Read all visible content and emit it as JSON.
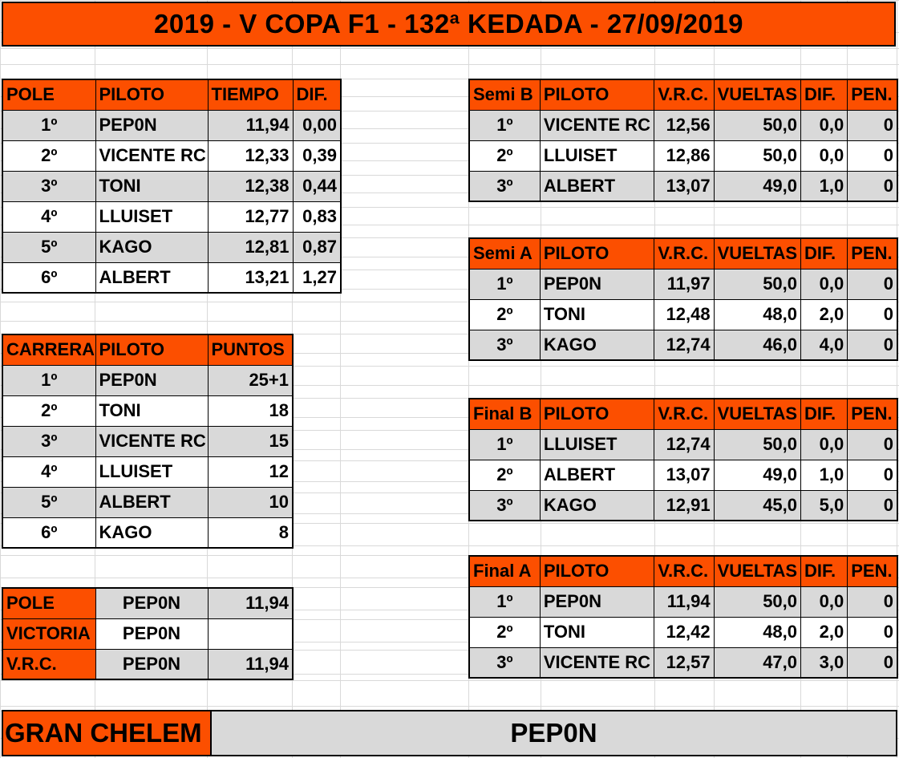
{
  "title": "2019 - V COPA F1 - 132ª KEDADA - 27/09/2019",
  "pole_table": {
    "headers": [
      "POLE",
      "PILOTO",
      "TIEMPO",
      "DIF."
    ],
    "rows": [
      [
        "1º",
        "PEP0N",
        "11,94",
        "0,00"
      ],
      [
        "2º",
        "VICENTE RC",
        "12,33",
        "0,39"
      ],
      [
        "3º",
        "TONI",
        "12,38",
        "0,44"
      ],
      [
        "4º",
        "LLUISET",
        "12,77",
        "0,83"
      ],
      [
        "5º",
        "KAGO",
        "12,81",
        "0,87"
      ],
      [
        "6º",
        "ALBERT",
        "13,21",
        "1,27"
      ]
    ]
  },
  "carrera_table": {
    "headers": [
      "CARRERA",
      "PILOTO",
      "PUNTOS"
    ],
    "rows": [
      [
        "1º",
        "PEP0N",
        "25+1"
      ],
      [
        "2º",
        "TONI",
        "18"
      ],
      [
        "3º",
        "VICENTE RC",
        "15"
      ],
      [
        "4º",
        "LLUISET",
        "12"
      ],
      [
        "5º",
        "ALBERT",
        "10"
      ],
      [
        "6º",
        "KAGO",
        "8"
      ]
    ]
  },
  "summary_table": {
    "rows": [
      [
        "POLE",
        "PEP0N",
        "11,94"
      ],
      [
        "VICTORIA",
        "PEP0N",
        ""
      ],
      [
        "V.R.C.",
        "PEP0N",
        "11,94"
      ]
    ]
  },
  "semi_b": {
    "headers": [
      "Semi B",
      "PILOTO",
      "V.R.C.",
      "VUELTAS",
      "DIF.",
      "PEN."
    ],
    "rows": [
      [
        "1º",
        "VICENTE RC",
        "12,56",
        "50,0",
        "0,0",
        "0"
      ],
      [
        "2º",
        "LLUISET",
        "12,86",
        "50,0",
        "0,0",
        "0"
      ],
      [
        "3º",
        "ALBERT",
        "13,07",
        "49,0",
        "1,0",
        "0"
      ]
    ]
  },
  "semi_a": {
    "headers": [
      "Semi A",
      "PILOTO",
      "V.R.C.",
      "VUELTAS",
      "DIF.",
      "PEN."
    ],
    "rows": [
      [
        "1º",
        "PEP0N",
        "11,97",
        "50,0",
        "0,0",
        "0"
      ],
      [
        "2º",
        "TONI",
        "12,48",
        "48,0",
        "2,0",
        "0"
      ],
      [
        "3º",
        "KAGO",
        "12,74",
        "46,0",
        "4,0",
        "0"
      ]
    ]
  },
  "final_b": {
    "headers": [
      "Final B",
      "PILOTO",
      "V.R.C.",
      "VUELTAS",
      "DIF.",
      "PEN."
    ],
    "rows": [
      [
        "1º",
        "LLUISET",
        "12,74",
        "50,0",
        "0,0",
        "0"
      ],
      [
        "2º",
        "ALBERT",
        "13,07",
        "49,0",
        "1,0",
        "0"
      ],
      [
        "3º",
        "KAGO",
        "12,91",
        "45,0",
        "5,0",
        "0"
      ]
    ]
  },
  "final_a": {
    "headers": [
      "Final A",
      "PILOTO",
      "V.R.C.",
      "VUELTAS",
      "DIF.",
      "PEN."
    ],
    "rows": [
      [
        "1º",
        "PEP0N",
        "11,94",
        "50,0",
        "0,0",
        "0"
      ],
      [
        "2º",
        "TONI",
        "12,42",
        "48,0",
        "2,0",
        "0"
      ],
      [
        "3º",
        "VICENTE RC",
        "12,57",
        "47,0",
        "3,0",
        "0"
      ]
    ]
  },
  "gran_chelem": {
    "label": "GRAN CHELEM",
    "value": "PEP0N"
  },
  "colors": {
    "accent": "#fc4f00",
    "shade": "#d9d9d9",
    "gridline": "#d9d9d9"
  }
}
